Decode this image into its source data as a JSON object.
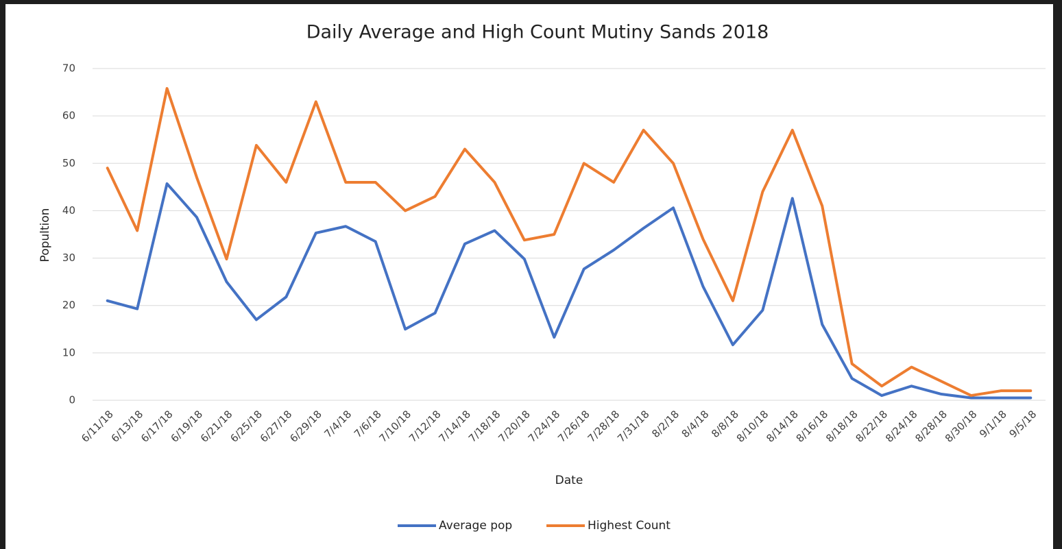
{
  "chart_data": {
    "type": "line",
    "title": "Daily Average and High Count Mutiny Sands 2018",
    "x_label": "Date",
    "y_label": "Popultion",
    "categories": [
      "6/11/18",
      "6/13/18",
      "6/17/18",
      "6/19/18",
      "6/21/18",
      "6/25/18",
      "6/27/18",
      "6/29/18",
      "7/4/18",
      "7/6/18",
      "7/10/18",
      "7/12/18",
      "7/14/18",
      "7/18/18",
      "7/20/18",
      "7/24/18",
      "7/26/18",
      "7/28/18",
      "7/31/18",
      "8/2/18",
      "8/4/18",
      "8/8/18",
      "8/10/18",
      "8/14/18",
      "8/16/18",
      "8/18/18",
      "8/22/18",
      "8/24/18",
      "8/28/18",
      "8/30/18",
      "9/1/18",
      "9/5/18"
    ],
    "series": [
      {
        "name": "Average pop",
        "color": "#4472c4",
        "values": [
          21,
          19.3,
          45.7,
          38.6,
          25,
          17,
          21.8,
          35.3,
          36.7,
          33.5,
          15,
          18.4,
          33,
          35.8,
          29.8,
          13.3,
          27.7,
          31.7,
          36.3,
          40.6,
          24,
          11.7,
          19,
          42.6,
          16,
          4.6,
          1,
          3,
          1.3,
          0.5,
          0.5,
          0.5
        ]
      },
      {
        "name": "Highest Count",
        "color": "#ed7d31",
        "values": [
          49,
          35.8,
          65.8,
          47,
          29.8,
          53.8,
          46,
          63,
          46,
          46,
          40,
          43,
          53,
          46,
          33.8,
          35,
          50,
          46,
          57,
          50,
          34,
          21,
          44,
          57,
          41,
          7.7,
          3,
          7,
          4,
          1,
          2,
          2
        ]
      }
    ],
    "ylim": [
      0,
      70
    ],
    "yticks": [
      0,
      10,
      20,
      30,
      40,
      50,
      60,
      70
    ],
    "grid": true,
    "legend": "bottom"
  }
}
